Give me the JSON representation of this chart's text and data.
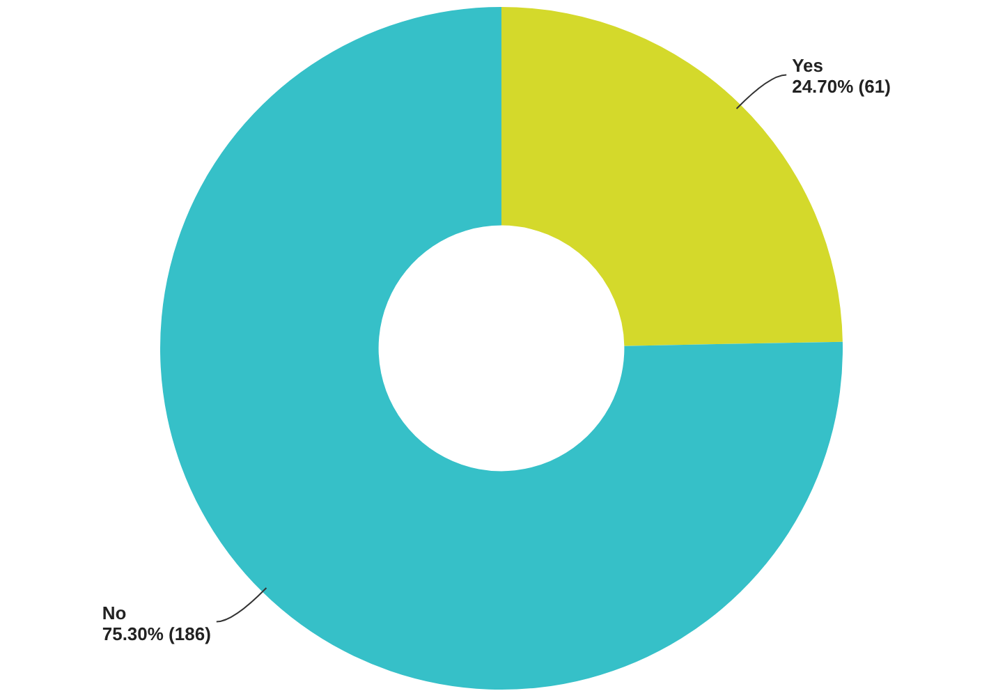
{
  "chart_data": {
    "type": "donut",
    "categories": [
      "Yes",
      "No"
    ],
    "values": [
      61,
      186
    ],
    "colors": [
      "#d4d92b",
      "#36c0c8"
    ],
    "value_labels": [
      "24.70% (61)",
      "75.30% (186)"
    ],
    "legend": false
  }
}
